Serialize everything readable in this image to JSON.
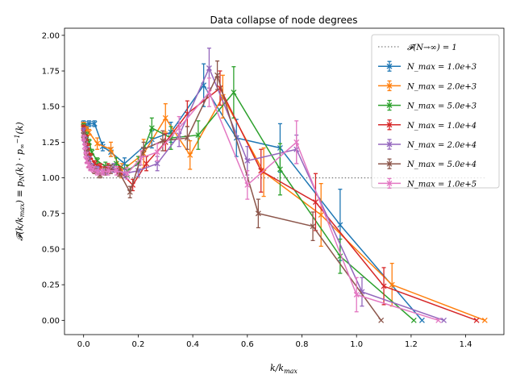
{
  "chart_data": {
    "type": "line",
    "title": "Data collapse of node degrees",
    "xlabel": "k/k_max",
    "ylabel": "𝓕(k/k_max) ≡ p_N(k) · p_∞⁻¹(k)",
    "xlim": [
      -0.07,
      1.54
    ],
    "ylim": [
      -0.1,
      2.05
    ],
    "xticks": [
      "0.0",
      "0.2",
      "0.4",
      "0.6",
      "0.8",
      "1.0",
      "1.2",
      "1.4"
    ],
    "xtick_values": [
      0,
      0.2,
      0.4,
      0.6,
      0.8,
      1.0,
      1.2,
      1.4
    ],
    "yticks": [
      "0.00",
      "0.25",
      "0.50",
      "0.75",
      "1.00",
      "1.25",
      "1.50",
      "1.75",
      "2.00"
    ],
    "ytick_values": [
      0,
      0.25,
      0.5,
      0.75,
      1.0,
      1.25,
      1.5,
      1.75,
      2.0
    ],
    "grid": false,
    "legend_position": "top-right",
    "reference_line": {
      "label": "𝓕(N→∞) = 1",
      "y": 1.0,
      "x_range": [
        0,
        1.47
      ],
      "color": "#7f7f7f",
      "style": "dotted"
    },
    "series": [
      {
        "name": "N_max = 1.0e+3",
        "color": "#1f77b4",
        "x": [
          0.0,
          0.01,
          0.02,
          0.04,
          0.07,
          0.1,
          0.15,
          0.25,
          0.32,
          0.44,
          0.56,
          0.72,
          0.94,
          1.24
        ],
        "y": [
          1.38,
          1.36,
          1.38,
          1.38,
          1.22,
          1.18,
          1.1,
          1.27,
          1.32,
          1.65,
          1.28,
          1.21,
          0.67,
          0.0
        ],
        "err": [
          0.02,
          0.02,
          0.02,
          0.02,
          0.03,
          0.03,
          0.04,
          0.06,
          0.07,
          0.15,
          0.13,
          0.17,
          0.25,
          0.0
        ]
      },
      {
        "name": "N_max = 2.0e+3",
        "color": "#ff7f0e",
        "x": [
          0.0,
          0.01,
          0.02,
          0.05,
          0.1,
          0.14,
          0.22,
          0.3,
          0.39,
          0.51,
          0.66,
          0.87,
          1.13,
          1.47
        ],
        "y": [
          1.37,
          1.34,
          1.32,
          1.24,
          1.2,
          1.05,
          1.17,
          1.42,
          1.16,
          1.57,
          1.04,
          0.74,
          0.25,
          0.0
        ],
        "err": [
          0.02,
          0.02,
          0.02,
          0.04,
          0.05,
          0.05,
          0.1,
          0.1,
          0.1,
          0.15,
          0.17,
          0.22,
          0.15,
          0.0
        ]
      },
      {
        "name": "N_max = 5.0e+3",
        "color": "#2ca02c",
        "x": [
          0.0,
          0.01,
          0.02,
          0.03,
          0.05,
          0.08,
          0.12,
          0.16,
          0.2,
          0.25,
          0.32,
          0.42,
          0.55,
          0.72,
          0.94,
          1.21
        ],
        "y": [
          1.36,
          1.3,
          1.25,
          1.18,
          1.12,
          1.08,
          1.1,
          1.05,
          1.1,
          1.35,
          1.28,
          1.3,
          1.6,
          1.06,
          0.45,
          0.0
        ],
        "err": [
          0.02,
          0.02,
          0.02,
          0.02,
          0.02,
          0.03,
          0.04,
          0.04,
          0.05,
          0.07,
          0.08,
          0.1,
          0.18,
          0.18,
          0.12,
          0.0
        ]
      },
      {
        "name": "N_max = 1.0e+4",
        "color": "#d62728",
        "x": [
          0.0,
          0.01,
          0.015,
          0.025,
          0.04,
          0.06,
          0.09,
          0.13,
          0.18,
          0.23,
          0.3,
          0.38,
          0.5,
          0.65,
          0.85,
          1.1,
          1.44
        ],
        "y": [
          1.35,
          1.28,
          1.22,
          1.15,
          1.1,
          1.08,
          1.07,
          1.05,
          0.95,
          1.1,
          1.25,
          1.45,
          1.63,
          1.05,
          0.83,
          0.24,
          0.0
        ],
        "err": [
          0.02,
          0.02,
          0.02,
          0.02,
          0.02,
          0.02,
          0.03,
          0.03,
          0.04,
          0.05,
          0.06,
          0.09,
          0.12,
          0.15,
          0.2,
          0.13,
          0.0
        ]
      },
      {
        "name": "N_max = 2.0e+4",
        "color": "#9467bd",
        "x": [
          0.0,
          0.005,
          0.01,
          0.02,
          0.03,
          0.05,
          0.08,
          0.11,
          0.15,
          0.2,
          0.27,
          0.35,
          0.46,
          0.6,
          0.78,
          1.02,
          1.32
        ],
        "y": [
          1.33,
          1.27,
          1.2,
          1.13,
          1.08,
          1.06,
          1.04,
          1.07,
          1.03,
          1.05,
          1.1,
          1.3,
          1.77,
          1.12,
          1.2,
          0.2,
          0.0
        ],
        "err": [
          0.02,
          0.02,
          0.02,
          0.02,
          0.02,
          0.02,
          0.02,
          0.03,
          0.03,
          0.04,
          0.05,
          0.08,
          0.14,
          0.1,
          0.1,
          0.1,
          0.0
        ]
      },
      {
        "name": "N_max = 5.0e+4",
        "color": "#8c564b",
        "x": [
          0.0,
          0.005,
          0.01,
          0.015,
          0.02,
          0.03,
          0.04,
          0.06,
          0.08,
          0.1,
          0.13,
          0.17,
          0.22,
          0.29,
          0.38,
          0.49,
          0.64,
          0.84,
          1.09
        ],
        "y": [
          1.3,
          1.25,
          1.18,
          1.12,
          1.09,
          1.07,
          1.05,
          1.02,
          1.05,
          1.06,
          1.04,
          0.9,
          1.2,
          1.26,
          1.28,
          1.72,
          0.75,
          0.66,
          0.0
        ],
        "err": [
          0.02,
          0.02,
          0.02,
          0.02,
          0.02,
          0.02,
          0.02,
          0.02,
          0.03,
          0.03,
          0.03,
          0.04,
          0.05,
          0.07,
          0.08,
          0.1,
          0.1,
          0.1,
          0.0
        ]
      },
      {
        "name": "N_max = 1.0e+5",
        "color": "#e377c2",
        "x": [
          0.0,
          0.004,
          0.008,
          0.012,
          0.018,
          0.025,
          0.035,
          0.05,
          0.07,
          0.09,
          0.12,
          0.16,
          0.21,
          0.27,
          0.35,
          0.46,
          0.6,
          0.78,
          1.0,
          1.3
        ],
        "y": [
          1.28,
          1.22,
          1.16,
          1.12,
          1.09,
          1.07,
          1.06,
          1.04,
          1.04,
          1.05,
          1.05,
          1.03,
          1.14,
          1.18,
          1.35,
          1.6,
          0.95,
          1.25,
          0.18,
          0.0
        ],
        "err": [
          0.02,
          0.02,
          0.02,
          0.02,
          0.02,
          0.02,
          0.02,
          0.02,
          0.02,
          0.03,
          0.03,
          0.04,
          0.05,
          0.06,
          0.08,
          0.1,
          0.1,
          0.15,
          0.12,
          0.0
        ]
      }
    ]
  }
}
